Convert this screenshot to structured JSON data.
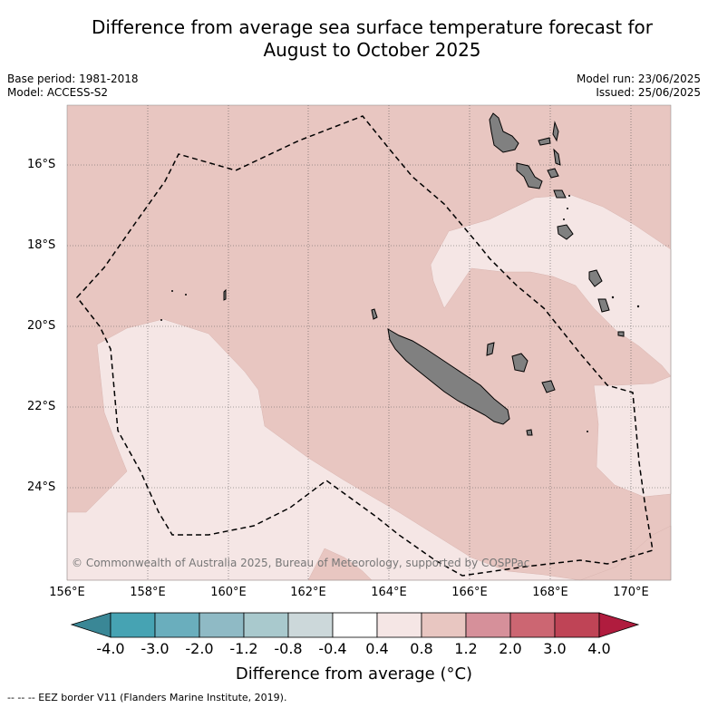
{
  "title_line1": "Difference from average sea surface temperature forecast for",
  "title_line2": "August to October 2025",
  "base_period": "Base period: 1981-2018",
  "model": "Model: ACCESS-S2",
  "model_run": "Model run: 23/06/2025",
  "issued": "Issued: 25/06/2025",
  "copyright": "© Commonwealth of Australia 2025, Bureau of Meteorology, supported by COSPPac",
  "lat_labels": [
    "16°S",
    "18°S",
    "20°S",
    "22°S",
    "24°S"
  ],
  "lon_labels": [
    "156°E",
    "158°E",
    "160°E",
    "162°E",
    "164°E",
    "166°E",
    "168°E",
    "170°E"
  ],
  "colorbar": {
    "ticks": [
      "-4.0",
      "-3.0",
      "-2.0",
      "-1.2",
      "-0.8",
      "-0.4",
      "0.4",
      "0.8",
      "1.2",
      "2.0",
      "3.0",
      "4.0"
    ],
    "colors": [
      "#3a8796",
      "#46a3b3",
      "#6aaebd",
      "#8fbac5",
      "#a9c9cd",
      "#ccd8da",
      "#ffffff",
      "#f5e6e5",
      "#e8c6c1",
      "#d6909a",
      "#cc6672",
      "#bf4456",
      "#b01c3e"
    ],
    "title": "Difference from average (°C)"
  },
  "fill_colors": {
    "band_0_4_to_0_8": "#f5e6e5",
    "band_0_8_to_1_2": "#e8c6c1",
    "land": "#808080"
  },
  "footer": "-- -- -- EEZ border V11 (Flanders Marine Institute, 2019)."
}
